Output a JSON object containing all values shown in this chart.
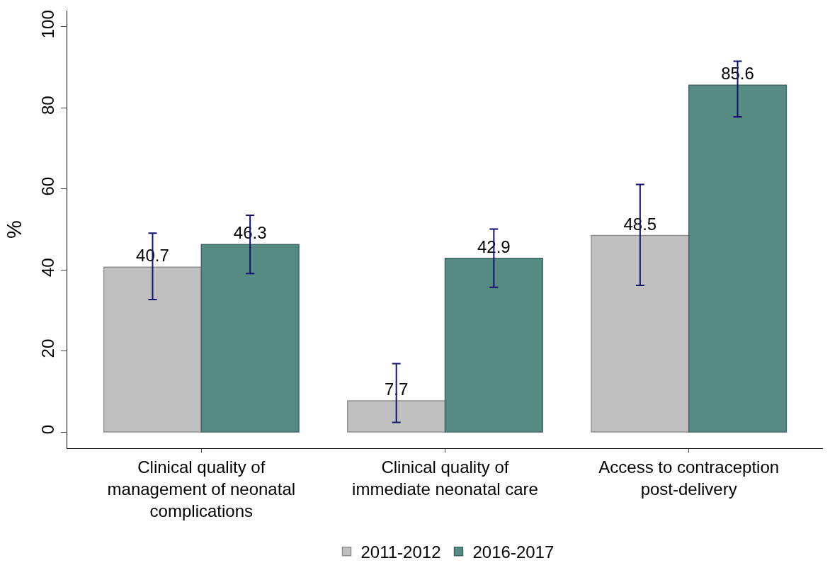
{
  "chart_data": {
    "type": "bar",
    "ylabel": "%",
    "categories": [
      "Clinical quality of management of neonatal complications",
      "Clinical quality of immediate neonatal care",
      "Access to contraception post-delivery"
    ],
    "series": [
      {
        "name": "2011-2012",
        "color": "#c0c0c0",
        "values": [
          40.7,
          7.7,
          48.5
        ],
        "errors": [
          [
            32.7,
            49.1
          ],
          [
            2.4,
            16.9
          ],
          [
            36.2,
            61.1
          ]
        ]
      },
      {
        "name": "2016-2017",
        "color": "#568b84",
        "values": [
          46.3,
          42.9,
          85.6
        ],
        "errors": [
          [
            39.1,
            53.5
          ],
          [
            35.7,
            50.1
          ],
          [
            77.8,
            91.5
          ]
        ]
      }
    ],
    "ylim": [
      -4,
      104
    ],
    "yticks": [
      0,
      20,
      40,
      60,
      80,
      100
    ],
    "legend": "bottom",
    "data_labels": true
  }
}
